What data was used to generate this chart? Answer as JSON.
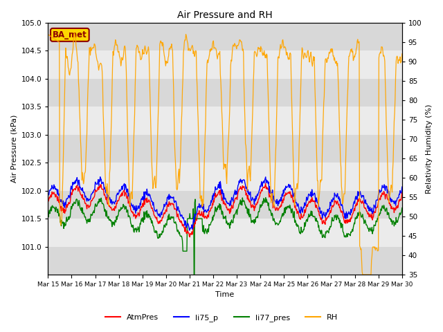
{
  "title": "Air Pressure and RH",
  "xlabel": "Time",
  "ylabel_left": "Air Pressure (kPa)",
  "ylabel_right": "Relativity Humidity (%)",
  "ylim_left": [
    100.5,
    105.0
  ],
  "ylim_right": [
    35,
    100
  ],
  "yticks_left": [
    101.0,
    101.5,
    102.0,
    102.5,
    103.0,
    103.5,
    104.0,
    104.5,
    105.0
  ],
  "yticks_right": [
    35,
    40,
    45,
    50,
    55,
    60,
    65,
    70,
    75,
    80,
    85,
    90,
    95,
    100
  ],
  "xtick_labels": [
    "Mar 15",
    "Mar 16",
    "Mar 17",
    "Mar 18",
    "Mar 19",
    "Mar 20",
    "Mar 21",
    "Mar 22",
    "Mar 23",
    "Mar 24",
    "Mar 25",
    "Mar 26",
    "Mar 27",
    "Mar 28",
    "Mar 29",
    "Mar 30"
  ],
  "background_color": "#ffffff",
  "plot_bg_light": "#ebebeb",
  "plot_bg_dark": "#d8d8d8",
  "legend_entries": [
    "AtmPres",
    "li75_p",
    "li77_pres",
    "RH"
  ],
  "line_colors": [
    "red",
    "blue",
    "green",
    "orange"
  ],
  "station_label": "BA_met",
  "station_label_color": "#8b0000",
  "station_box_edge": "#8b0000",
  "station_box_fill": "#ffd700",
  "figsize": [
    6.4,
    4.8
  ],
  "dpi": 100
}
